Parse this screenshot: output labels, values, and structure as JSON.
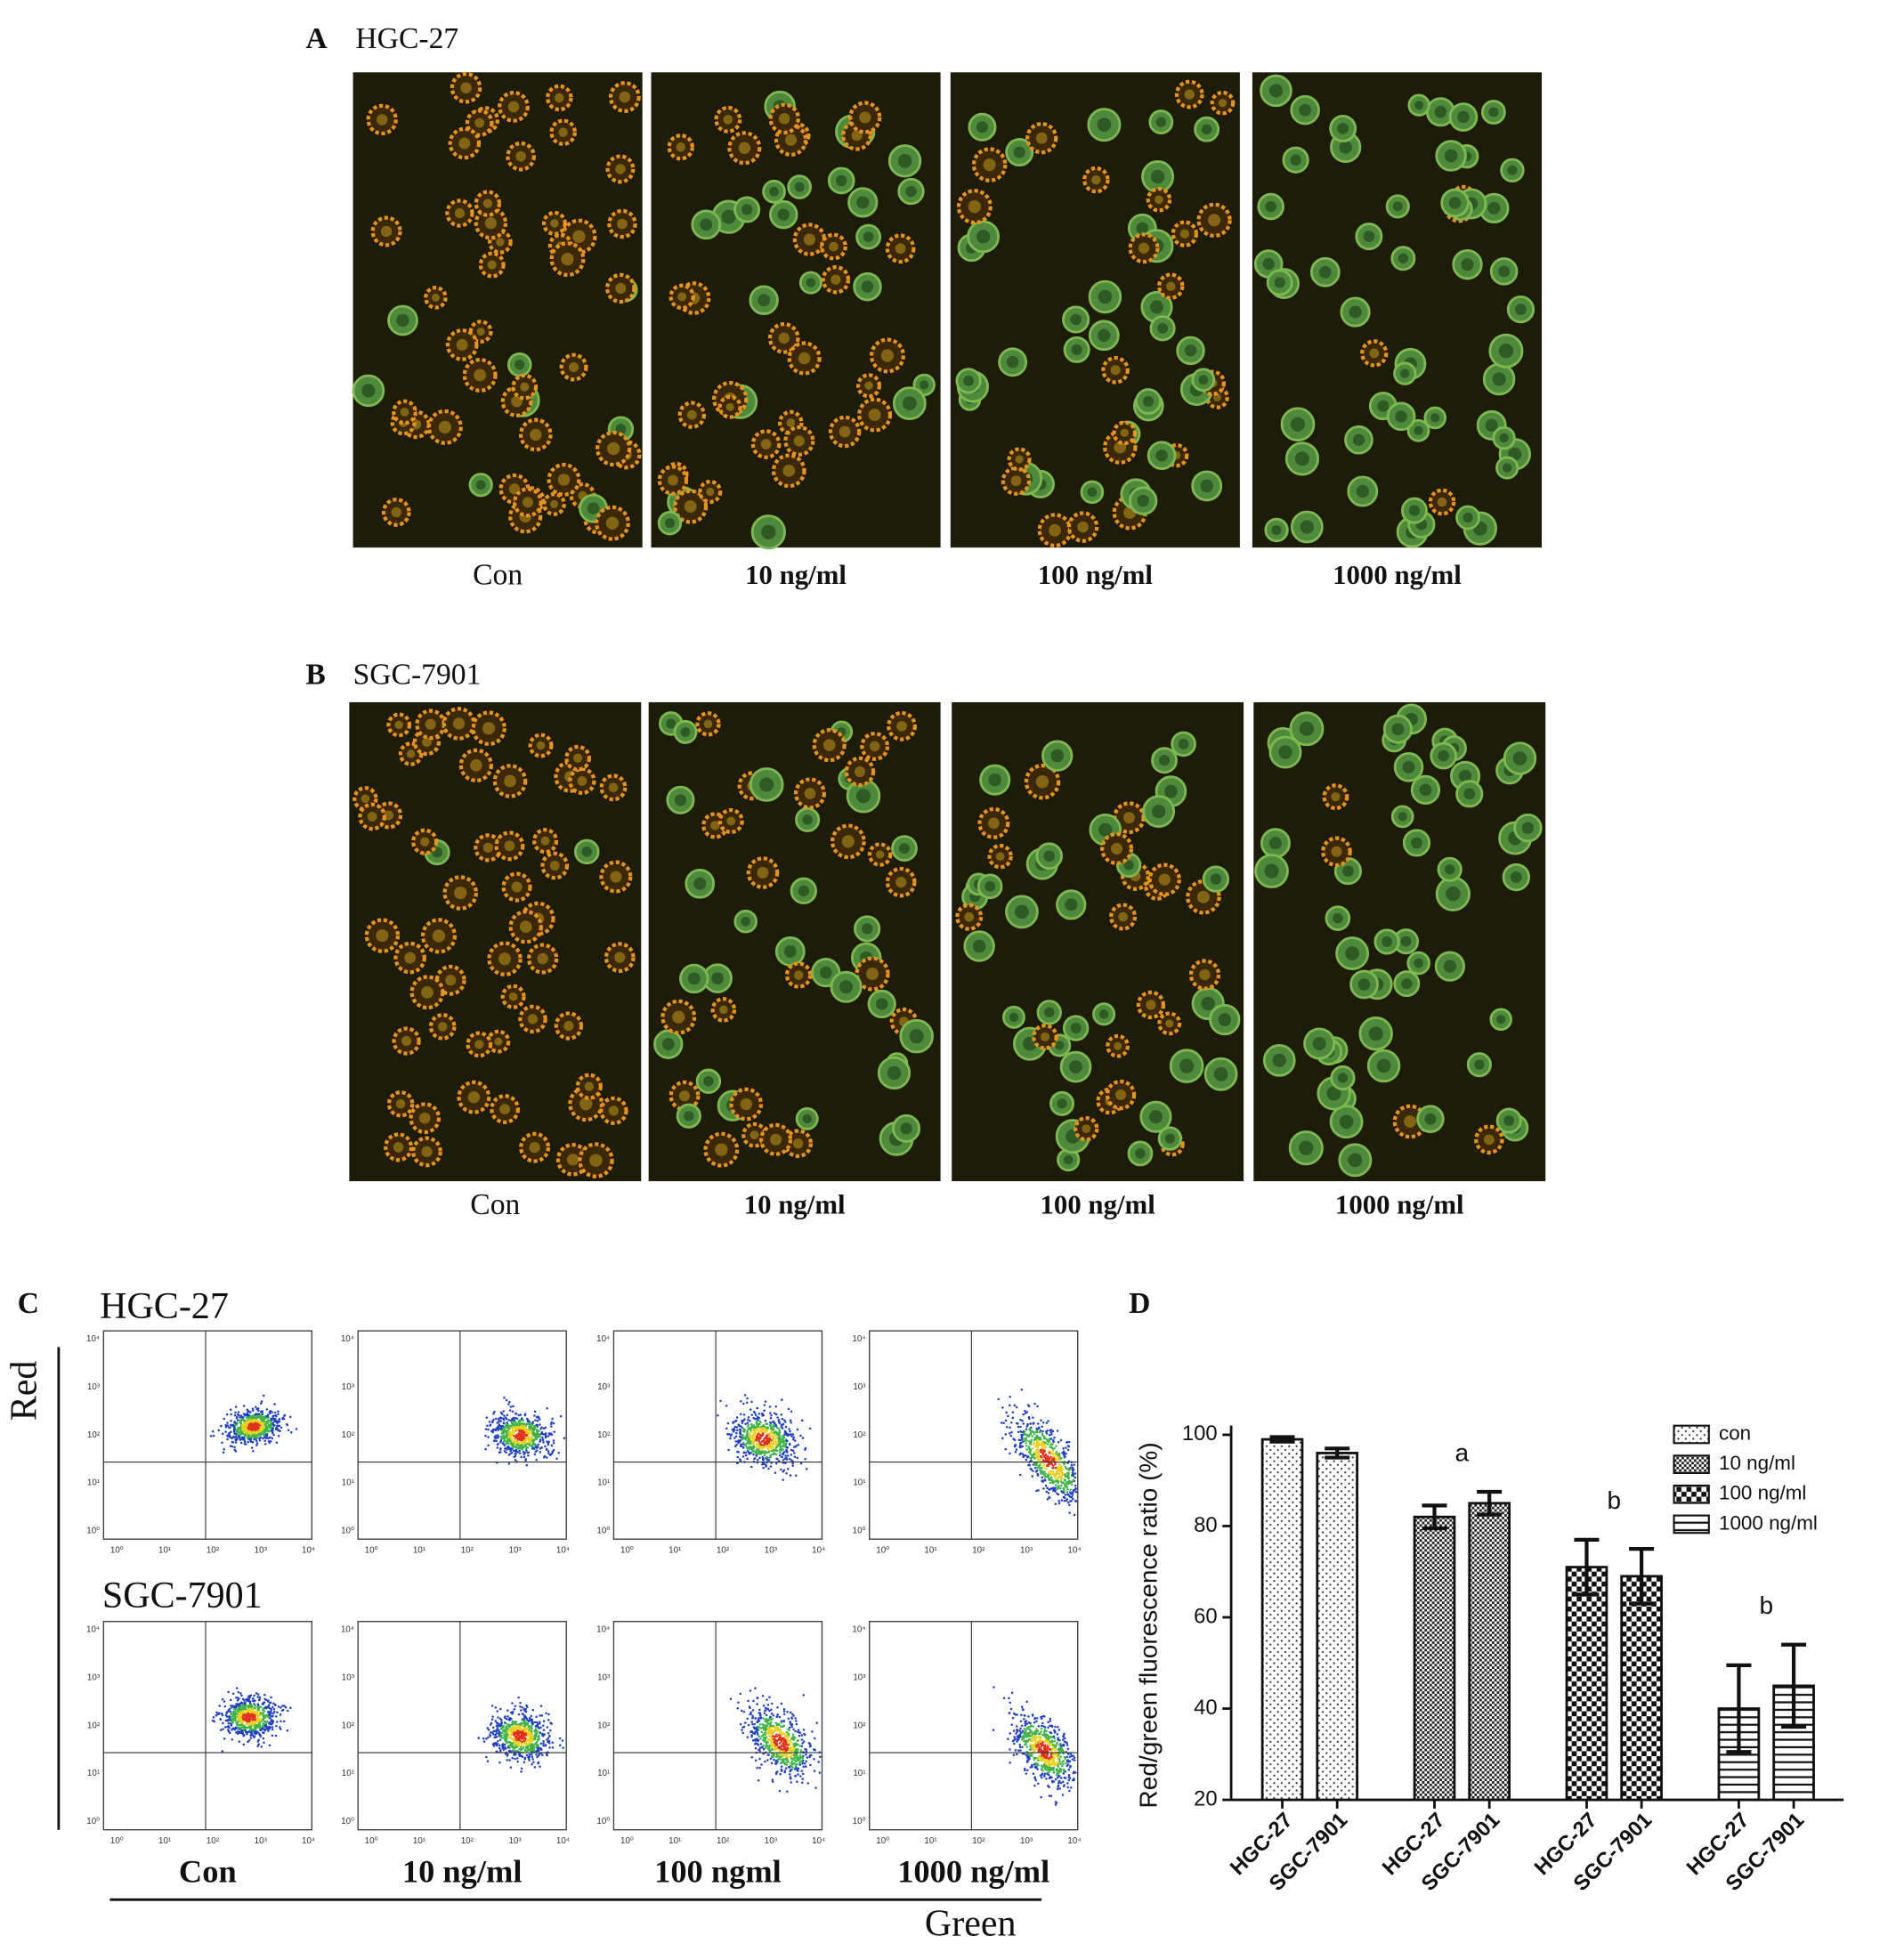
{
  "panels": {
    "a": {
      "label": "A",
      "title": "HGC-27",
      "captions": [
        "Con",
        "10 ng/ml",
        "100 ng/ml",
        "1000 ng/ml"
      ]
    },
    "b": {
      "label": "B",
      "title": "SGC-7901",
      "captions": [
        "Con",
        "10 ng/ml",
        "100 ng/ml",
        "1000 ng/ml"
      ]
    },
    "c": {
      "label": "C",
      "rows": [
        "HGC-27",
        "SGC-7901"
      ],
      "y_axis_label": "Red",
      "x_axis_label": "Green",
      "captions": [
        "Con",
        "10 ng/ml",
        "100 ngml",
        "1000 ng/ml"
      ],
      "axis_ticks": [
        "10⁰",
        "10¹",
        "10²",
        "10³",
        "10⁴"
      ]
    },
    "d": {
      "label": "D"
    }
  },
  "chart_data": {
    "type": "bar",
    "ylabel": "Red/green fluorescence ratio (%)",
    "categories": [
      "HGC-27",
      "SGC-7901"
    ],
    "series": [
      {
        "name": "con",
        "pattern": "dots",
        "values": [
          99,
          96
        ],
        "errors": [
          0.5,
          1
        ]
      },
      {
        "name": "10 ng/ml",
        "pattern": "fine-checker",
        "values": [
          82,
          85
        ],
        "errors": [
          2.5,
          2.5
        ],
        "annotation": "a"
      },
      {
        "name": "100 ng/ml",
        "pattern": "checker",
        "values": [
          71,
          69
        ],
        "errors": [
          6,
          6
        ],
        "annotation": "b"
      },
      {
        "name": "1000 ng/ml",
        "pattern": "hlines",
        "values": [
          40,
          45
        ],
        "errors": [
          9.5,
          9
        ],
        "annotation": "b"
      }
    ],
    "ylim": [
      20,
      102
    ],
    "yticks": [
      20,
      40,
      60,
      80,
      100
    ],
    "legend": "upper-right"
  }
}
